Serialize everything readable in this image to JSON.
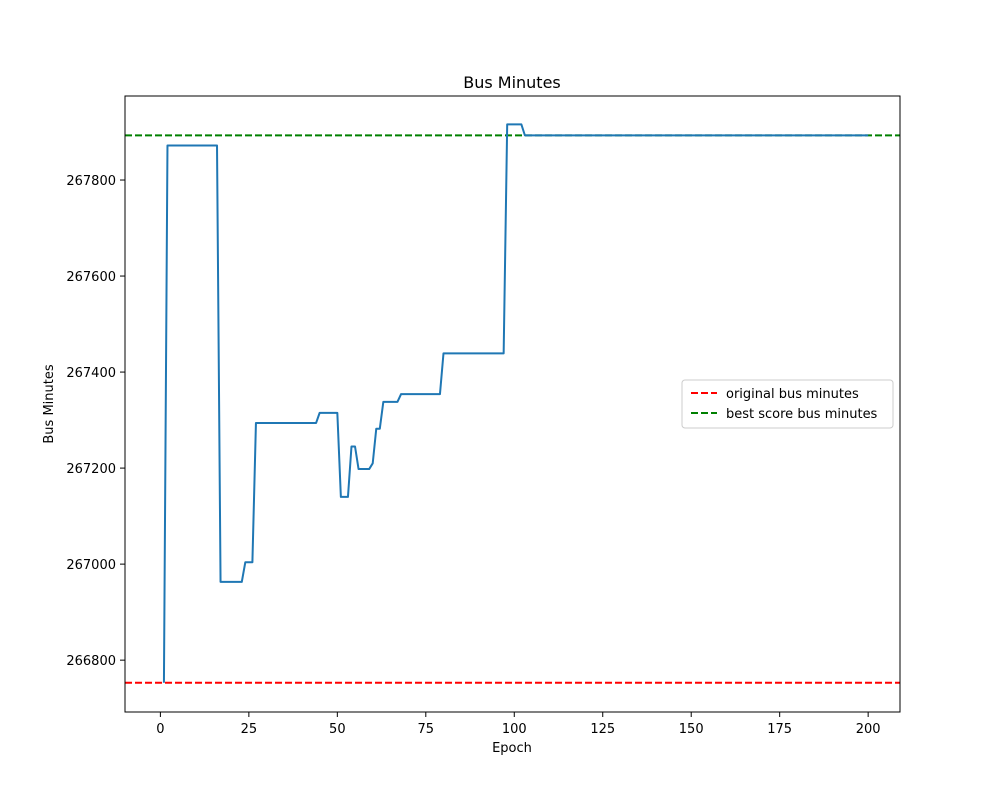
{
  "chart_data": {
    "type": "line",
    "title": "Bus Minutes",
    "xlabel": "Epoch",
    "ylabel": "Bus Minutes",
    "xlim": [
      -10,
      209
    ],
    "ylim": [
      266692,
      266692,
      267975
    ],
    "x_ticks": [
      0,
      25,
      50,
      75,
      100,
      125,
      150,
      175,
      200
    ],
    "y_ticks": [
      266800,
      267000,
      267200,
      267400,
      267600,
      267800
    ],
    "grid": false,
    "legend_position": "center-right",
    "series": [
      {
        "color": "#1f77b4",
        "points": [
          [
            1,
            266753
          ],
          [
            2,
            267872
          ],
          [
            16,
            267872
          ],
          [
            17,
            266963
          ],
          [
            23,
            266963
          ],
          [
            24,
            267004
          ],
          [
            26,
            267004
          ],
          [
            27,
            267294
          ],
          [
            44,
            267294
          ],
          [
            45,
            267315
          ],
          [
            50,
            267315
          ],
          [
            51,
            267140
          ],
          [
            53,
            267140
          ],
          [
            54,
            267245
          ],
          [
            55,
            267245
          ],
          [
            56,
            267198
          ],
          [
            59,
            267198
          ],
          [
            60,
            267210
          ],
          [
            61,
            267282
          ],
          [
            62,
            267282
          ],
          [
            63,
            267338
          ],
          [
            67,
            267338
          ],
          [
            68,
            267354
          ],
          [
            79,
            267354
          ],
          [
            80,
            267439
          ],
          [
            97,
            267439
          ],
          [
            98,
            267916
          ],
          [
            102,
            267916
          ],
          [
            103,
            267893
          ],
          [
            200,
            267893
          ]
        ]
      }
    ],
    "reference_lines": [
      {
        "name": "original bus minutes",
        "y": 266753,
        "color": "#ff0000",
        "style": "dashed"
      },
      {
        "name": "best score bus minutes",
        "y": 267893,
        "color": "#008000",
        "style": "dashed"
      }
    ]
  }
}
